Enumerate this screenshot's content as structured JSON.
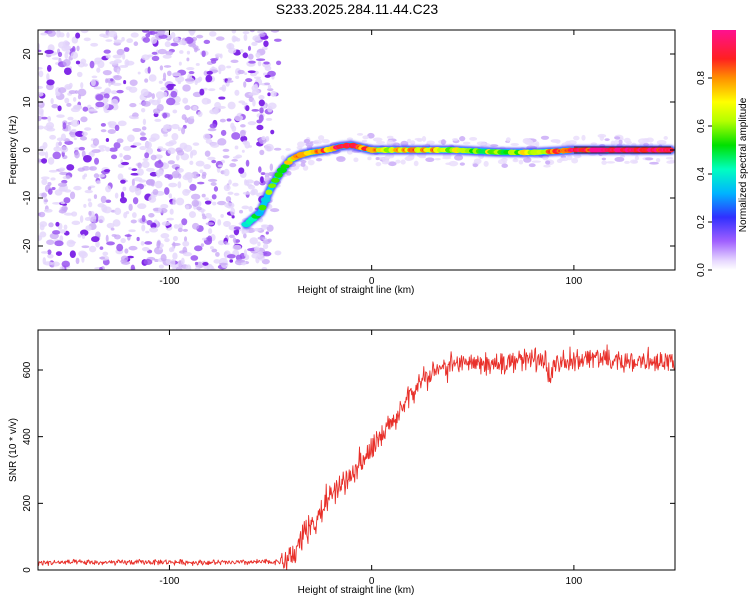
{
  "title": "S233.2025.284.11.44.C23",
  "chart_data": [
    {
      "type": "heatmap",
      "name": "spectrogram",
      "xlabel": "Height of straight line (km)",
      "ylabel": "Frequency (Hz)",
      "xlim": [
        -165,
        150
      ],
      "ylim": [
        -25,
        25
      ],
      "xticks": [
        -100,
        0,
        100
      ],
      "xtick_labels": [
        "-100",
        "0",
        "100"
      ],
      "yticks": [
        -20,
        -10,
        0,
        10,
        20
      ],
      "ytick_labels": [
        "-20",
        "-10",
        "0",
        "10",
        "20"
      ],
      "noise_region_x": [
        -165,
        -50
      ],
      "track": {
        "x": [
          -62,
          -55,
          -50,
          -45,
          -40,
          -35,
          -30,
          -25,
          -20,
          -15,
          -10,
          -5,
          0,
          10,
          20,
          30,
          40,
          50,
          60,
          70,
          80,
          90,
          100,
          110,
          120,
          130,
          140,
          148
        ],
        "y": [
          -15.5,
          -13,
          -8,
          -4.5,
          -2,
          -1,
          -0.5,
          -0.2,
          0.2,
          0.8,
          1,
          0.5,
          0,
          0,
          0,
          0,
          0,
          -0.2,
          -0.4,
          -0.5,
          -0.5,
          -0.3,
          0,
          0,
          0,
          0,
          0,
          0
        ],
        "amplitude": [
          0.35,
          0.45,
          0.5,
          0.6,
          0.65,
          0.7,
          0.75,
          0.8,
          0.8,
          0.85,
          0.9,
          0.8,
          0.75,
          0.7,
          0.7,
          0.75,
          0.65,
          0.6,
          0.6,
          0.6,
          0.7,
          0.75,
          0.85,
          0.95,
          0.95,
          0.95,
          0.95,
          0.95
        ]
      }
    },
    {
      "type": "colorbar",
      "name": "amplitude-scale",
      "label": "Normalized spectral amplitude",
      "range": [
        0,
        1
      ],
      "ticks": [
        0.0,
        0.2,
        0.4,
        0.6,
        0.8
      ],
      "tick_labels": [
        "0.0",
        "0.2",
        "0.4",
        "0.6",
        "0.8"
      ],
      "colors": [
        "#ffffff",
        "#d7c0ff",
        "#8a2be2",
        "#2020ff",
        "#00c8ff",
        "#00ff80",
        "#00e000",
        "#c8ff00",
        "#ffff00",
        "#ff9000",
        "#ff2020",
        "#ff1080"
      ]
    },
    {
      "type": "line",
      "name": "snr",
      "xlabel": "Height of straight line (km)",
      "ylabel": "SNR (10 * v/v)",
      "xlim": [
        -165,
        150
      ],
      "ylim": [
        0,
        720
      ],
      "xticks": [
        -100,
        0,
        100
      ],
      "xtick_labels": [
        "-100",
        "0",
        "100"
      ],
      "yticks": [
        0,
        200,
        400,
        600
      ],
      "ytick_labels": [
        "0",
        "200",
        "400",
        "600"
      ],
      "color": "#e8302a",
      "x": [
        -165,
        -150,
        -130,
        -110,
        -90,
        -70,
        -55,
        -45,
        -42,
        -38,
        -35,
        -30,
        -25,
        -20,
        -15,
        -10,
        -5,
        0,
        5,
        10,
        15,
        20,
        25,
        30,
        40,
        50,
        60,
        70,
        80,
        85,
        88,
        90,
        100,
        110,
        120,
        130,
        140,
        150
      ],
      "y": [
        22,
        23,
        22,
        24,
        23,
        22,
        24,
        25,
        28,
        50,
        90,
        130,
        175,
        230,
        260,
        290,
        325,
        360,
        400,
        440,
        480,
        530,
        570,
        590,
        615,
        620,
        618,
        625,
        635,
        640,
        560,
        610,
        630,
        640,
        628,
        622,
        625,
        630
      ]
    }
  ]
}
